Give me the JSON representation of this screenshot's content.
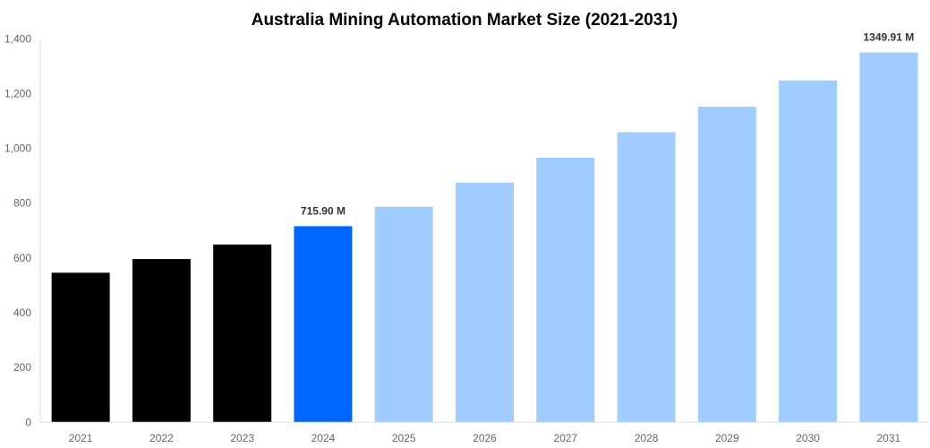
{
  "chart_data": {
    "type": "bar",
    "title": "Australia Mining Automation Market Size (2021-2031)",
    "xlabel": "",
    "ylabel": "",
    "categories": [
      "2021",
      "2022",
      "2023",
      "2024",
      "2025",
      "2026",
      "2027",
      "2028",
      "2029",
      "2030",
      "2031"
    ],
    "values": [
      546,
      596,
      649,
      715.9,
      787,
      875,
      966,
      1059,
      1152,
      1248,
      1349.91
    ],
    "data_labels": {
      "3": "715.90 M",
      "10": "1349.91 M"
    },
    "ylim": [
      0,
      1400
    ],
    "yticks": [
      0,
      200,
      400,
      600,
      800,
      1000,
      1200,
      1400
    ],
    "ytick_labels": [
      "0",
      "200",
      "400",
      "600",
      "800",
      "1,000",
      "1,200",
      "1,400"
    ],
    "grid": false,
    "legend": "none",
    "colors": {
      "historical": "#000000",
      "current": "#0066ff",
      "forecast": "#a0cdfd",
      "axis": "#dddddd"
    },
    "bar_color_groups": [
      "historical",
      "historical",
      "historical",
      "current",
      "forecast",
      "forecast",
      "forecast",
      "forecast",
      "forecast",
      "forecast",
      "forecast"
    ]
  }
}
